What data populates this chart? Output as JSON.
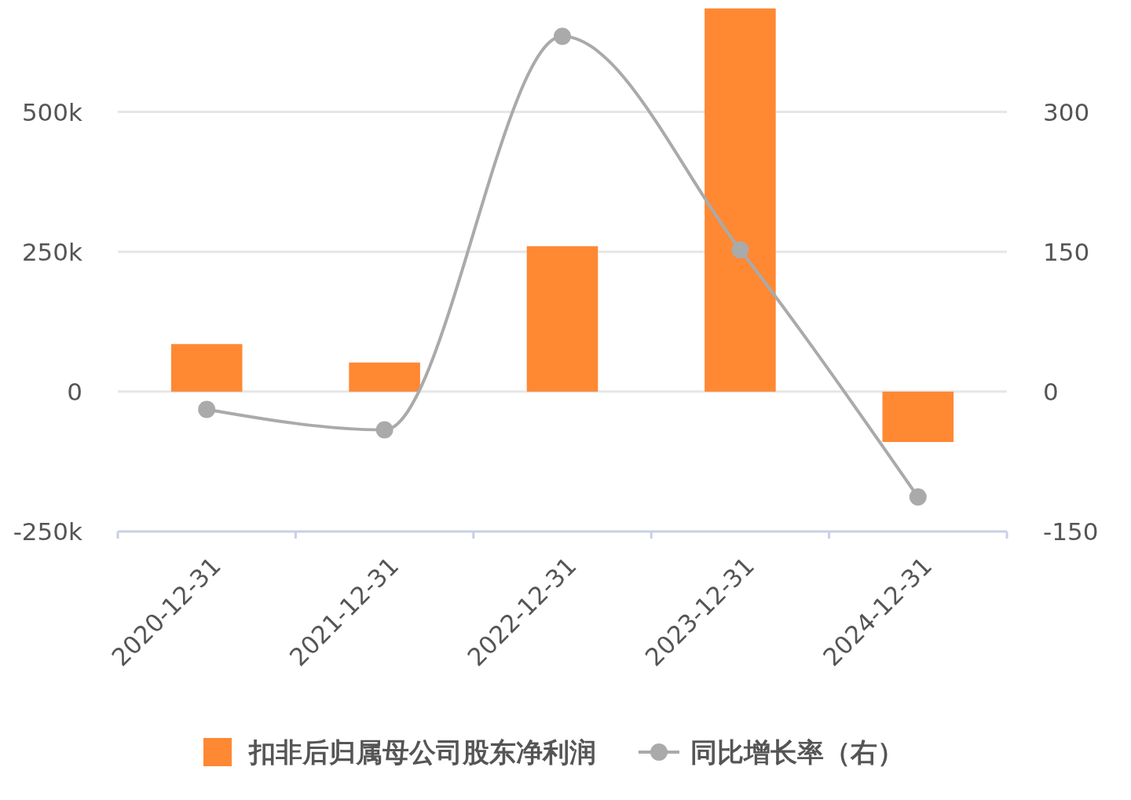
{
  "chart_data": {
    "type": "bar",
    "categories": [
      "2020-12-31",
      "2021-12-31",
      "2022-12-31",
      "2023-12-31",
      "2024-12-31"
    ],
    "series": [
      {
        "name": "扣非后归属母公司股东净利润",
        "color": "#ff8833",
        "values": [
          85000,
          52000,
          260000,
          685000,
          -90000
        ]
      },
      {
        "name": "同比增长率（右）",
        "type": "line",
        "axis": "y2",
        "color": "#aaaaaa",
        "marker": "circle",
        "values": [
          -19,
          -41,
          381,
          152,
          -113
        ]
      }
    ],
    "ylim": [
      -250000,
      700000
    ],
    "yticks": [
      {
        "value": -250000,
        "label": "-250k"
      },
      {
        "value": 0,
        "label": "0"
      },
      {
        "value": 250000,
        "label": "250k"
      },
      {
        "value": 500000,
        "label": "500k"
      }
    ],
    "y2lim": [
      -150,
      420
    ],
    "y2ticks": [
      -150,
      0,
      150,
      300
    ],
    "grid": "y",
    "legend": "bottom"
  }
}
